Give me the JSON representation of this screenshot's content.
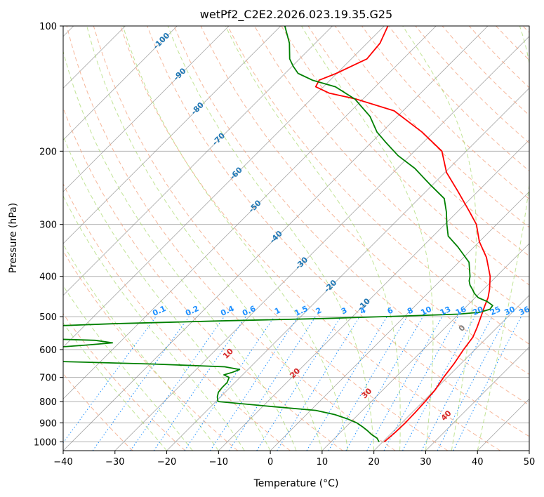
{
  "chart_data": {
    "type": "line",
    "title": "wetPf2_C2E2.2026.023.19.35.G25",
    "xlabel": "Temperature (°C)",
    "ylabel": "Pressure (hPa)",
    "xlim": [
      -40,
      50
    ],
    "ylim": [
      1050,
      100
    ],
    "y_scale": "log",
    "skew_t": true,
    "grid": true,
    "x_ticks": [
      -40,
      -30,
      -20,
      -10,
      0,
      10,
      20,
      30,
      40,
      50
    ],
    "y_ticks": [
      100,
      200,
      300,
      400,
      500,
      600,
      700,
      800,
      900,
      1000
    ],
    "series": [
      {
        "color": "#ff0000",
        "points": [
          [
            20.3,
            1000
          ],
          [
            20.6,
            950
          ],
          [
            20.7,
            900
          ],
          [
            20.6,
            850
          ],
          [
            20.4,
            800
          ],
          [
            20.1,
            750
          ],
          [
            19.3,
            700
          ],
          [
            18.7,
            650
          ],
          [
            17.8,
            600
          ],
          [
            17.2,
            560
          ],
          [
            16.1,
            530
          ],
          [
            14.8,
            500
          ],
          [
            13.4,
            470
          ],
          [
            12.5,
            450
          ],
          [
            11.2,
            430
          ],
          [
            8.8,
            400
          ],
          [
            4.4,
            360
          ],
          [
            0.0,
            330
          ],
          [
            -3.9,
            300
          ],
          [
            -7.6,
            280
          ],
          [
            -13.8,
            250
          ],
          [
            -19.7,
            225
          ],
          [
            -24.7,
            200
          ],
          [
            -32.2,
            180
          ],
          [
            -41.7,
            160
          ],
          [
            -51.2,
            150
          ],
          [
            -57.7,
            145
          ],
          [
            -61.5,
            140
          ],
          [
            -62.1,
            135
          ],
          [
            -60.1,
            130
          ],
          [
            -57.0,
            120
          ],
          [
            -57.5,
            110
          ],
          [
            -59.3,
            100
          ]
        ]
      },
      {
        "color": "#008000",
        "points": [
          [
            19.3,
            1000
          ],
          [
            18.2,
            980
          ],
          [
            16.4,
            960
          ],
          [
            14.9,
            940
          ],
          [
            13.2,
            920
          ],
          [
            11.3,
            900
          ],
          [
            8.7,
            880
          ],
          [
            5.5,
            860
          ],
          [
            1.0,
            840
          ],
          [
            -9.4,
            820
          ],
          [
            -19.6,
            800
          ],
          [
            -20.6,
            780
          ],
          [
            -21.3,
            760
          ],
          [
            -21.5,
            740
          ],
          [
            -21.5,
            720
          ],
          [
            -22.1,
            700
          ],
          [
            -23.6,
            690
          ],
          [
            -22.4,
            680
          ],
          [
            -21.6,
            670
          ],
          [
            -25.0,
            660
          ],
          [
            -39.2,
            650
          ],
          [
            -60.0,
            640
          ],
          [
            -63.4,
            630
          ],
          [
            -66.3,
            620
          ],
          [
            -68.5,
            610
          ],
          [
            -63.4,
            595
          ],
          [
            -55.8,
            585
          ],
          [
            -51.3,
            578
          ],
          [
            -55.1,
            570
          ],
          [
            -70.3,
            563
          ],
          [
            -88.0,
            555
          ],
          [
            -86.0,
            540
          ],
          [
            -72.0,
            530
          ],
          [
            -55.0,
            520
          ],
          [
            -35.0,
            512
          ],
          [
            -15.0,
            505
          ],
          [
            0.0,
            498
          ],
          [
            10.0,
            493
          ],
          [
            13.7,
            488
          ],
          [
            15.1,
            480
          ],
          [
            14.9,
            470
          ],
          [
            13.1,
            460
          ],
          [
            10.6,
            450
          ],
          [
            9.1,
            440
          ],
          [
            7.9,
            430
          ],
          [
            6.6,
            420
          ],
          [
            5.6,
            410
          ],
          [
            4.9,
            400
          ],
          [
            2.0,
            370
          ],
          [
            -3.1,
            340
          ],
          [
            -7.1,
            320
          ],
          [
            -9.6,
            300
          ],
          [
            -12.1,
            280
          ],
          [
            -15.1,
            260
          ],
          [
            -20.7,
            240
          ],
          [
            -26.6,
            220
          ],
          [
            -32.3,
            205
          ],
          [
            -37.4,
            190
          ],
          [
            -40.9,
            180
          ],
          [
            -45.3,
            165
          ],
          [
            -51.5,
            150
          ],
          [
            -57.7,
            140
          ],
          [
            -63.4,
            135
          ],
          [
            -67.5,
            130
          ],
          [
            -69.8,
            125
          ],
          [
            -71.9,
            120
          ],
          [
            -75.0,
            110
          ],
          [
            -79.2,
            100
          ]
        ]
      }
    ],
    "isotherm_labels": [
      "-100",
      "-90",
      "-80",
      "-70",
      "-60",
      "-50",
      "-40",
      "-30",
      "-20",
      "-10"
    ],
    "mixing_ratio_labels": [
      "0.1",
      "0.2",
      "0.4",
      "0.6",
      "1",
      "1.5",
      "2",
      "3",
      "4",
      "6",
      "8",
      "10",
      "13",
      "16",
      "20",
      "25",
      "30",
      "36"
    ],
    "moist_adiabat_labels": [
      "0"
    ],
    "dry_adiabat_labels": [
      "10",
      "20",
      "30",
      "40"
    ],
    "colors": {
      "temperature": "#ff0000",
      "dewpoint": "#008000",
      "isotherm": "#808080",
      "dry_adiabat": "#f4a582",
      "moist_adiabat": "#a6d96a",
      "mixing_ratio": "#1e90ff",
      "isotherm_label": "#1f77b4",
      "adiabat_label": "#d62728"
    }
  }
}
